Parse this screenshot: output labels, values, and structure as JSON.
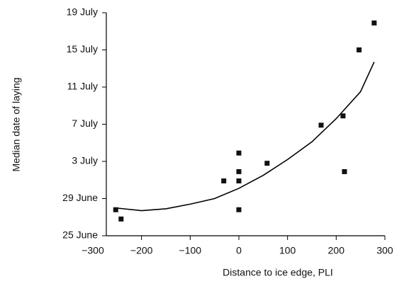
{
  "chart_data": {
    "type": "scatter",
    "xlabel": "Distance to ice edge, PLI",
    "ylabel": "Median date of laying",
    "x": [
      -253,
      -242,
      -31,
      0,
      0,
      0,
      0,
      58,
      169,
      214,
      217,
      247,
      278
    ],
    "values": [
      27.8,
      26.8,
      30.9,
      33.9,
      31.9,
      30.9,
      27.8,
      32.8,
      36.9,
      37.9,
      31.9,
      45.0,
      47.9
    ],
    "color": "#111111",
    "fit": {
      "x": [
        -255,
        -200,
        -150,
        -100,
        -50,
        0,
        50,
        100,
        150,
        200,
        250,
        278
      ],
      "values": [
        28.0,
        27.7,
        27.9,
        28.4,
        29.0,
        30.1,
        31.5,
        33.2,
        35.1,
        37.6,
        40.5,
        43.7
      ],
      "color": "#000000"
    },
    "xlim": [
      -300,
      300
    ],
    "xticks": [
      {
        "value": -300,
        "label": "−300"
      },
      {
        "value": -200,
        "label": "−200"
      },
      {
        "value": -100,
        "label": "−100"
      },
      0,
      100,
      200,
      300
    ],
    "ylim": [
      25,
      49
    ],
    "yticks": [
      {
        "value": 25,
        "label": "25 June"
      },
      {
        "value": 29,
        "label": "29 June"
      },
      {
        "value": 33,
        "label": "3 July"
      },
      {
        "value": 37,
        "label": "7 July"
      },
      {
        "value": 41,
        "label": "11 July"
      },
      {
        "value": 45,
        "label": "15 July"
      },
      {
        "value": 49,
        "label": "19 July"
      }
    ]
  }
}
